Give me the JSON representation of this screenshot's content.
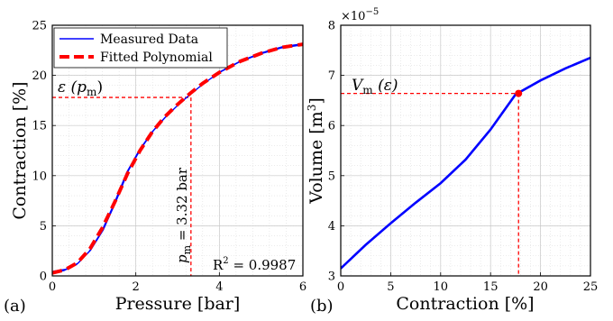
{
  "chart_data": [
    {
      "panel_label": "(a)",
      "type": "line",
      "xlabel": "Pressure [bar]",
      "ylabel": "Contraction [%]",
      "xlim": [
        0,
        6
      ],
      "ylim": [
        0,
        25
      ],
      "xticks": [
        "0",
        "2",
        "4",
        "6"
      ],
      "yticks": [
        "0",
        "5",
        "10",
        "15",
        "20",
        "25"
      ],
      "grid": true,
      "legend": {
        "position": "top-left",
        "entries": [
          "Measured Data",
          "Fitted Polynomial"
        ]
      },
      "series": [
        {
          "name": "Measured Data",
          "color": "#0000ff",
          "style": "solid",
          "x": [
            0,
            0.3,
            0.6,
            0.9,
            1.2,
            1.5,
            1.8,
            2.1,
            2.4,
            2.7,
            3.0,
            3.3,
            3.6,
            4.0,
            4.5,
            5.0,
            5.5,
            6.0
          ],
          "y": [
            0.4,
            0.6,
            1.2,
            2.5,
            4.5,
            7.3,
            10.4,
            12.6,
            14.4,
            15.8,
            17.0,
            18.1,
            19.1,
            20.3,
            21.4,
            22.2,
            22.8,
            23.1
          ]
        },
        {
          "name": "Fitted Polynomial",
          "color": "#ff0000",
          "style": "dashed",
          "x": [
            0,
            0.3,
            0.6,
            0.9,
            1.2,
            1.5,
            1.8,
            2.1,
            2.4,
            2.7,
            3.0,
            3.3,
            3.6,
            4.0,
            4.5,
            5.0,
            5.5,
            6.0
          ],
          "y": [
            0.3,
            0.6,
            1.3,
            2.7,
            4.8,
            7.4,
            10.2,
            12.5,
            14.4,
            15.9,
            17.1,
            18.2,
            19.2,
            20.3,
            21.4,
            22.2,
            22.8,
            23.1
          ]
        }
      ],
      "annotations": {
        "epsilon_label": "ε (p",
        "epsilon_sub": "m",
        "epsilon_close": ")",
        "pm_label": "p",
        "pm_sub": "m",
        "pm_value": " = 3.32 bar",
        "r2_label": "R",
        "r2_sup": "2",
        "r2_value": " = 0.9987",
        "marker_x": 3.32,
        "marker_y": 17.8
      }
    },
    {
      "panel_label": "(b)",
      "type": "line",
      "xlabel": "Contraction [%]",
      "ylabel": "Volume [m",
      "ylabel_sup": "3",
      "ylabel_close": "]",
      "xlim": [
        0,
        25
      ],
      "ylim": [
        3,
        8
      ],
      "xticks": [
        "0",
        "5",
        "10",
        "15",
        "20",
        "25"
      ],
      "yticks": [
        "3",
        "4",
        "5",
        "6",
        "7",
        "8"
      ],
      "exponent_base": "×10",
      "exponent_power": "−5",
      "grid": true,
      "series": [
        {
          "name": "",
          "color": "#0000ff",
          "style": "solid",
          "x": [
            0,
            2.5,
            5,
            7.5,
            10,
            12.5,
            15,
            17.5,
            20,
            22.5,
            25
          ],
          "y": [
            3.15,
            3.62,
            4.05,
            4.46,
            4.85,
            5.32,
            5.92,
            6.62,
            6.9,
            7.14,
            7.35
          ]
        }
      ],
      "annotations": {
        "vm_label": "V",
        "vm_sub": "m",
        "vm_rest": " (ε)",
        "marker_x": 17.8,
        "marker_y": 6.64
      }
    }
  ]
}
